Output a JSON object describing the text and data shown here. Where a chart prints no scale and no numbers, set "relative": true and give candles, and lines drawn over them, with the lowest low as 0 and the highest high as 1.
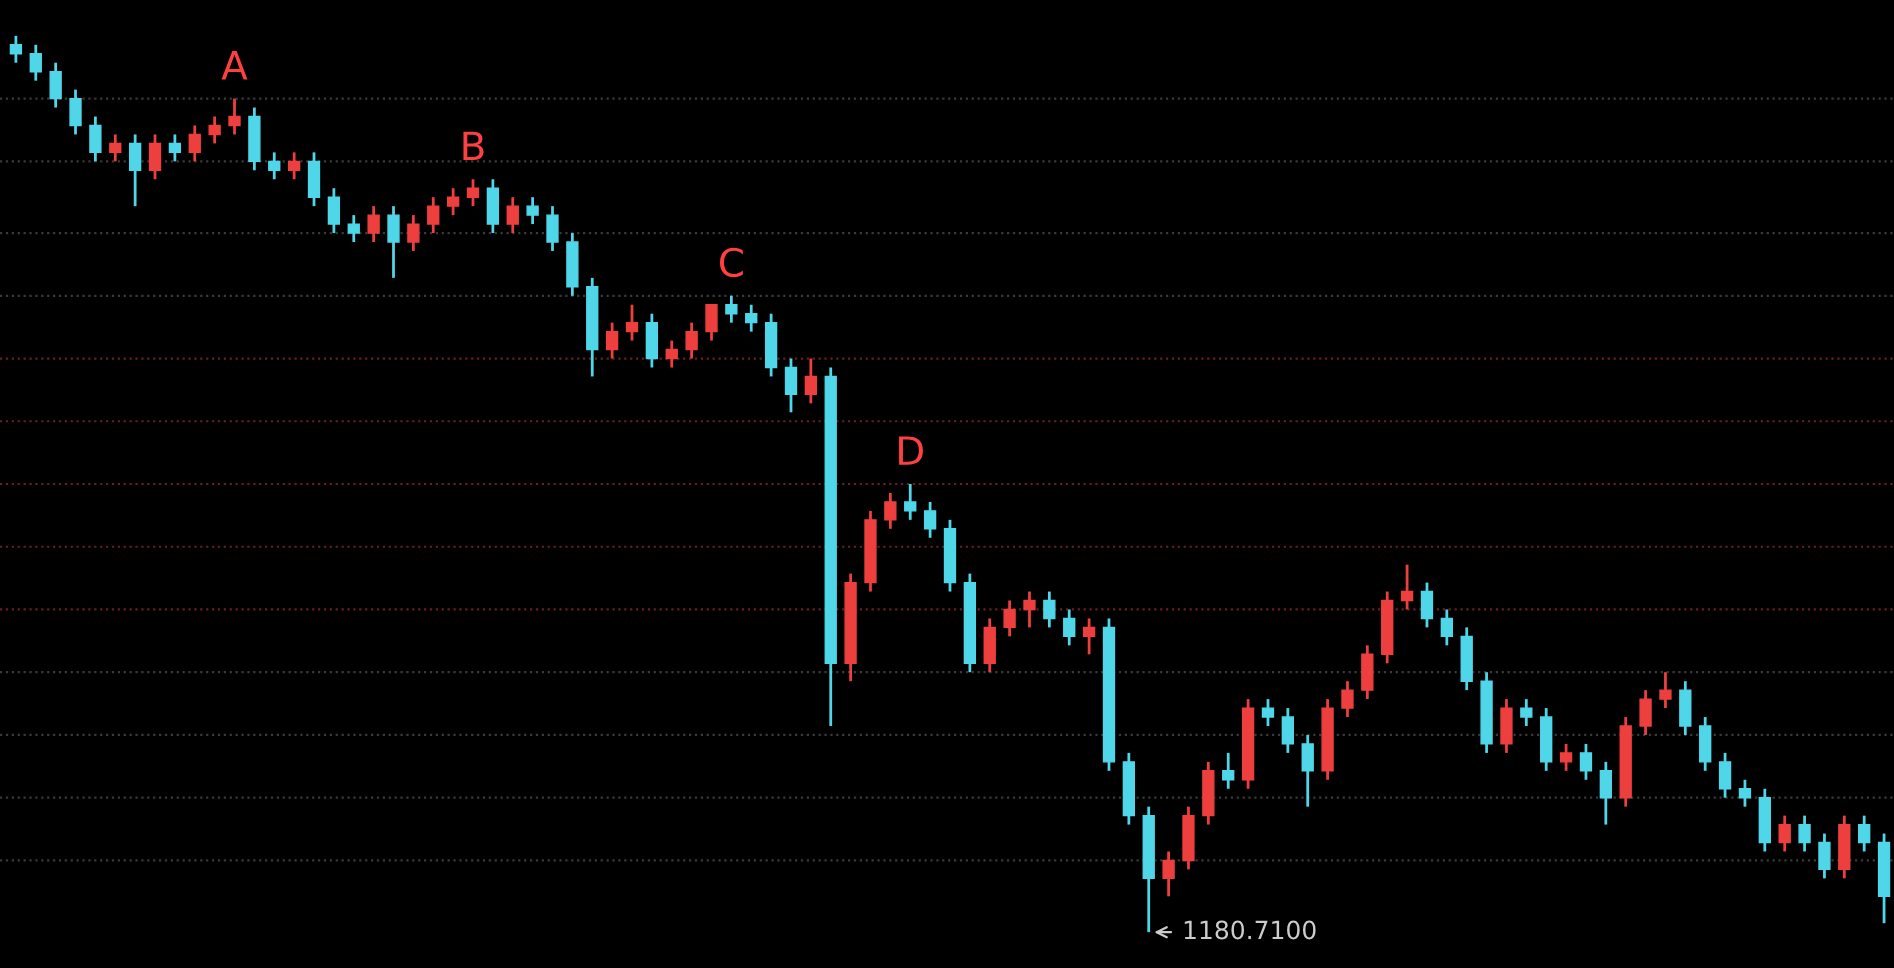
{
  "chart_data": {
    "type": "candlestick",
    "relative": true,
    "grid": false,
    "categories": [
      null,
      null,
      null,
      null,
      null,
      null,
      null,
      null,
      null,
      null,
      null,
      null,
      null,
      null,
      null,
      null,
      null,
      null,
      null,
      null,
      null,
      null,
      null,
      null,
      null,
      null,
      null,
      null,
      null,
      null,
      null,
      null,
      null,
      null,
      null,
      null,
      null,
      null,
      null,
      null,
      null,
      null,
      null,
      null,
      null,
      null,
      null,
      null,
      null,
      null,
      null,
      null,
      null,
      null,
      null,
      null,
      null,
      null,
      null,
      null,
      null,
      null,
      null,
      null,
      null,
      null,
      null,
      null,
      null,
      null,
      null,
      null,
      null,
      null,
      null,
      null,
      null,
      null,
      null,
      null,
      null,
      null,
      null,
      null,
      null,
      null,
      null,
      null,
      null,
      null,
      null,
      null,
      null,
      null,
      null
    ],
    "ohlc": [
      [
        0.99,
        1.0,
        0.97,
        0.98
      ],
      [
        0.98,
        0.99,
        0.95,
        0.96
      ],
      [
        0.96,
        0.97,
        0.92,
        0.93
      ],
      [
        0.93,
        0.94,
        0.89,
        0.9
      ],
      [
        0.9,
        0.91,
        0.86,
        0.87
      ],
      [
        0.87,
        0.89,
        0.86,
        0.88
      ],
      [
        0.88,
        0.89,
        0.81,
        0.85
      ],
      [
        0.85,
        0.89,
        0.84,
        0.88
      ],
      [
        0.88,
        0.89,
        0.86,
        0.87
      ],
      [
        0.87,
        0.9,
        0.86,
        0.89
      ],
      [
        0.89,
        0.91,
        0.88,
        0.9
      ],
      [
        0.9,
        0.93,
        0.89,
        0.91
      ],
      [
        0.91,
        0.92,
        0.85,
        0.86
      ],
      [
        0.86,
        0.87,
        0.84,
        0.85
      ],
      [
        0.85,
        0.87,
        0.84,
        0.86
      ],
      [
        0.86,
        0.87,
        0.81,
        0.82
      ],
      [
        0.82,
        0.83,
        0.78,
        0.79
      ],
      [
        0.79,
        0.8,
        0.77,
        0.78
      ],
      [
        0.78,
        0.81,
        0.77,
        0.8
      ],
      [
        0.8,
        0.81,
        0.73,
        0.77
      ],
      [
        0.77,
        0.8,
        0.76,
        0.79
      ],
      [
        0.79,
        0.82,
        0.78,
        0.81
      ],
      [
        0.81,
        0.83,
        0.8,
        0.82
      ],
      [
        0.82,
        0.84,
        0.81,
        0.83
      ],
      [
        0.83,
        0.84,
        0.78,
        0.79
      ],
      [
        0.79,
        0.82,
        0.78,
        0.81
      ],
      [
        0.81,
        0.82,
        0.79,
        0.8
      ],
      [
        0.8,
        0.81,
        0.76,
        0.77
      ],
      [
        0.77,
        0.78,
        0.71,
        0.72
      ],
      [
        0.72,
        0.73,
        0.62,
        0.65
      ],
      [
        0.65,
        0.68,
        0.64,
        0.67
      ],
      [
        0.67,
        0.7,
        0.66,
        0.68
      ],
      [
        0.68,
        0.69,
        0.63,
        0.64
      ],
      [
        0.64,
        0.66,
        0.63,
        0.65
      ],
      [
        0.65,
        0.68,
        0.64,
        0.67
      ],
      [
        0.67,
        0.7,
        0.66,
        0.7
      ],
      [
        0.7,
        0.71,
        0.68,
        0.69
      ],
      [
        0.69,
        0.7,
        0.67,
        0.68
      ],
      [
        0.68,
        0.69,
        0.62,
        0.63
      ],
      [
        0.63,
        0.64,
        0.58,
        0.6
      ],
      [
        0.6,
        0.64,
        0.59,
        0.62
      ],
      [
        0.62,
        0.63,
        0.23,
        0.3
      ],
      [
        0.3,
        0.4,
        0.28,
        0.39
      ],
      [
        0.39,
        0.47,
        0.38,
        0.46
      ],
      [
        0.46,
        0.49,
        0.45,
        0.48
      ],
      [
        0.48,
        0.5,
        0.46,
        0.47
      ],
      [
        0.47,
        0.48,
        0.44,
        0.45
      ],
      [
        0.45,
        0.46,
        0.38,
        0.39
      ],
      [
        0.39,
        0.4,
        0.29,
        0.3
      ],
      [
        0.3,
        0.35,
        0.29,
        0.34
      ],
      [
        0.34,
        0.37,
        0.33,
        0.36
      ],
      [
        0.36,
        0.38,
        0.34,
        0.37
      ],
      [
        0.37,
        0.38,
        0.34,
        0.35
      ],
      [
        0.35,
        0.36,
        0.32,
        0.33
      ],
      [
        0.33,
        0.35,
        0.31,
        0.34
      ],
      [
        0.34,
        0.35,
        0.18,
        0.19
      ],
      [
        0.19,
        0.2,
        0.12,
        0.13
      ],
      [
        0.13,
        0.14,
        0.0,
        0.06
      ],
      [
        0.06,
        0.09,
        0.04,
        0.08
      ],
      [
        0.08,
        0.14,
        0.07,
        0.13
      ],
      [
        0.13,
        0.19,
        0.12,
        0.18
      ],
      [
        0.18,
        0.2,
        0.16,
        0.17
      ],
      [
        0.17,
        0.26,
        0.16,
        0.25
      ],
      [
        0.25,
        0.26,
        0.23,
        0.24
      ],
      [
        0.24,
        0.25,
        0.2,
        0.21
      ],
      [
        0.21,
        0.22,
        0.14,
        0.18
      ],
      [
        0.18,
        0.26,
        0.17,
        0.25
      ],
      [
        0.25,
        0.28,
        0.24,
        0.27
      ],
      [
        0.27,
        0.32,
        0.26,
        0.31
      ],
      [
        0.31,
        0.38,
        0.3,
        0.37
      ],
      [
        0.37,
        0.41,
        0.36,
        0.38
      ],
      [
        0.38,
        0.39,
        0.34,
        0.35
      ],
      [
        0.35,
        0.36,
        0.32,
        0.33
      ],
      [
        0.33,
        0.34,
        0.27,
        0.28
      ],
      [
        0.28,
        0.29,
        0.2,
        0.21
      ],
      [
        0.21,
        0.26,
        0.2,
        0.25
      ],
      [
        0.25,
        0.26,
        0.23,
        0.24
      ],
      [
        0.24,
        0.25,
        0.18,
        0.19
      ],
      [
        0.19,
        0.21,
        0.18,
        0.2
      ],
      [
        0.2,
        0.21,
        0.17,
        0.18
      ],
      [
        0.18,
        0.19,
        0.12,
        0.15
      ],
      [
        0.15,
        0.24,
        0.14,
        0.23
      ],
      [
        0.23,
        0.27,
        0.22,
        0.26
      ],
      [
        0.26,
        0.29,
        0.25,
        0.27
      ],
      [
        0.27,
        0.28,
        0.22,
        0.23
      ],
      [
        0.23,
        0.24,
        0.18,
        0.19
      ],
      [
        0.19,
        0.2,
        0.15,
        0.16
      ],
      [
        0.16,
        0.17,
        0.14,
        0.15
      ],
      [
        0.15,
        0.16,
        0.09,
        0.1
      ],
      [
        0.1,
        0.13,
        0.09,
        0.12
      ],
      [
        0.12,
        0.13,
        0.09,
        0.1
      ],
      [
        0.1,
        0.11,
        0.06,
        0.07
      ],
      [
        0.07,
        0.13,
        0.06,
        0.12
      ],
      [
        0.12,
        0.13,
        0.09,
        0.1
      ],
      [
        0.1,
        0.11,
        0.01,
        0.04
      ]
    ],
    "colors": [
      "#4fd6e8",
      "#4fd6e8",
      "#4fd6e8",
      "#4fd6e8",
      "#4fd6e8",
      "#ee3f3f",
      "#4fd6e8",
      "#ee3f3f",
      "#4fd6e8",
      "#ee3f3f",
      "#ee3f3f",
      "#ee3f3f",
      "#4fd6e8",
      "#4fd6e8",
      "#ee3f3f",
      "#4fd6e8",
      "#4fd6e8",
      "#4fd6e8",
      "#ee3f3f",
      "#4fd6e8",
      "#ee3f3f",
      "#ee3f3f",
      "#ee3f3f",
      "#ee3f3f",
      "#4fd6e8",
      "#ee3f3f",
      "#4fd6e8",
      "#4fd6e8",
      "#4fd6e8",
      "#4fd6e8",
      "#ee3f3f",
      "#ee3f3f",
      "#4fd6e8",
      "#ee3f3f",
      "#ee3f3f",
      "#ee3f3f",
      "#4fd6e8",
      "#4fd6e8",
      "#4fd6e8",
      "#4fd6e8",
      "#ee3f3f",
      "#4fd6e8",
      "#ee3f3f",
      "#ee3f3f",
      "#ee3f3f",
      "#4fd6e8",
      "#4fd6e8",
      "#4fd6e8",
      "#4fd6e8",
      "#ee3f3f",
      "#ee3f3f",
      "#ee3f3f",
      "#4fd6e8",
      "#4fd6e8",
      "#ee3f3f",
      "#4fd6e8",
      "#4fd6e8",
      "#4fd6e8",
      "#ee3f3f",
      "#ee3f3f",
      "#ee3f3f",
      "#4fd6e8",
      "#ee3f3f",
      "#4fd6e8",
      "#4fd6e8",
      "#4fd6e8",
      "#ee3f3f",
      "#ee3f3f",
      "#ee3f3f",
      "#ee3f3f",
      "#ee3f3f",
      "#4fd6e8",
      "#4fd6e8",
      "#4fd6e8",
      "#4fd6e8",
      "#ee3f3f",
      "#4fd6e8",
      "#4fd6e8",
      "#ee3f3f",
      "#4fd6e8",
      "#4fd6e8",
      "#ee3f3f",
      "#ee3f3f",
      "#ee3f3f",
      "#4fd6e8",
      "#4fd6e8",
      "#4fd6e8",
      "#4fd6e8",
      "#4fd6e8",
      "#ee3f3f",
      "#4fd6e8",
      "#4fd6e8",
      "#ee3f3f",
      "#4fd6e8",
      "#4fd6e8"
    ],
    "annotations": [
      {
        "text": "A",
        "y": 0.93
      },
      {
        "text": "B",
        "y": 0.84
      },
      {
        "text": "C",
        "y": 0.71
      },
      {
        "text": "D",
        "y": 0.5
      },
      "1180.7100"
    ],
    "ref_lines": [
      {
        "axis": "y",
        "value": 0.93,
        "color": "#3a3a3a",
        "line_style": "dotted"
      },
      {
        "axis": "y",
        "value": 0.86,
        "color": "#3a3a3a",
        "line_style": "dotted"
      },
      {
        "axis": "y",
        "value": 0.78,
        "color": "#3a3a3a",
        "line_style": "dotted"
      },
      {
        "axis": "y",
        "value": 0.71,
        "color": "#3a3a3a",
        "line_style": "dotted"
      },
      {
        "axis": "y",
        "value": 0.64,
        "color": "#6a1f1f",
        "line_style": "dotted"
      },
      {
        "axis": "y",
        "value": 0.57,
        "color": "#6a1f1f",
        "line_style": "dotted"
      },
      {
        "axis": "y",
        "value": 0.5,
        "color": "#6a1f1f",
        "line_style": "dotted"
      },
      {
        "axis": "y",
        "value": 0.43,
        "color": "#6a1f1f",
        "line_style": "dotted"
      },
      {
        "axis": "y",
        "value": 0.36,
        "color": "#6a1f1f",
        "line_style": "dotted"
      },
      {
        "axis": "y",
        "value": 0.29,
        "color": "#3a3a3a",
        "line_style": "dotted"
      },
      {
        "axis": "y",
        "value": 0.22,
        "color": "#3a3a3a",
        "line_style": "dotted"
      },
      {
        "axis": "y",
        "value": 0.15,
        "color": "#3a3a3a",
        "line_style": "dotted"
      },
      {
        "axis": "y",
        "value": 0.08,
        "color": "#3a3a3a",
        "line_style": "dotted"
      }
    ]
  }
}
